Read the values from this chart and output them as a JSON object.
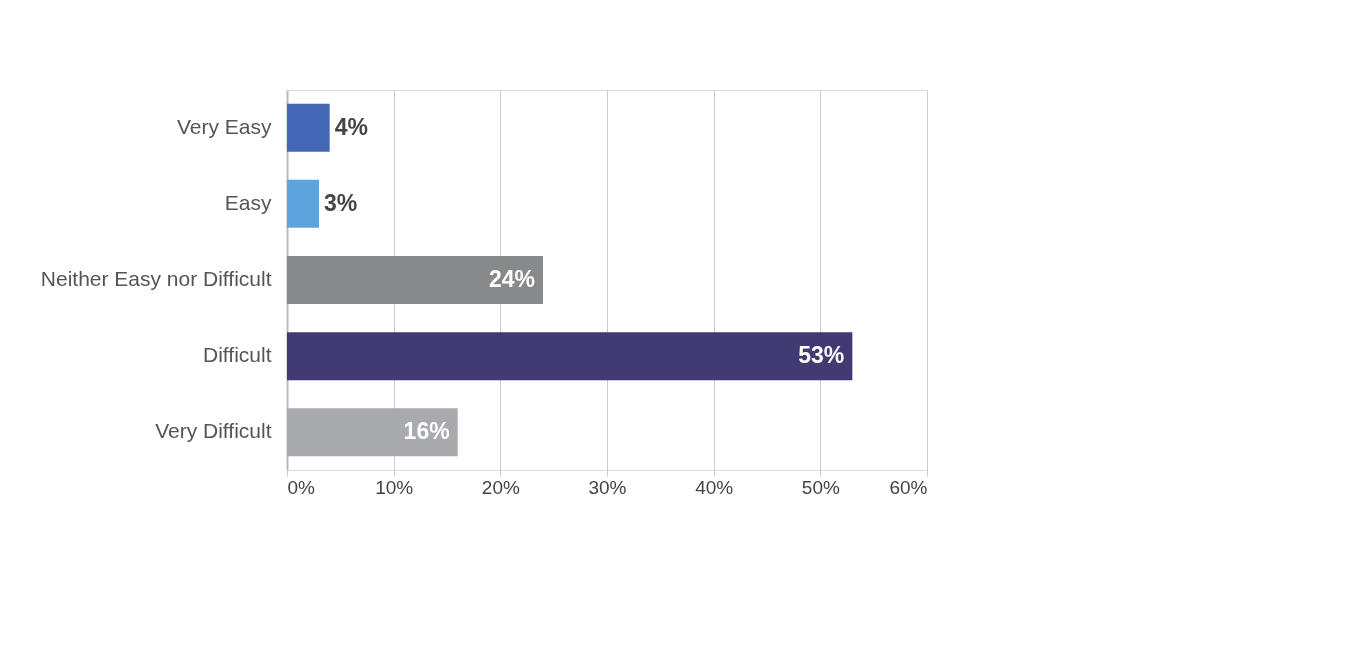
{
  "chart_data": {
    "type": "bar",
    "orientation": "horizontal",
    "categories": [
      "Very Easy",
      "Easy",
      "Neither Easy nor Difficult",
      "Difficult",
      "Very Difficult"
    ],
    "values": [
      4,
      3,
      24,
      53,
      16
    ],
    "colors": [
      "#4467b5",
      "#5da3dd",
      "#88898b",
      "#423a73",
      "#a9aaad"
    ],
    "value_labels": [
      "4%",
      "3%",
      "24%",
      "53%",
      "16%"
    ],
    "xlim": [
      0,
      60
    ],
    "xticks": [
      {
        "value": 0,
        "label": "0%"
      },
      {
        "value": 10,
        "label": "10%"
      },
      {
        "value": 20,
        "label": "20%"
      },
      {
        "value": 30,
        "label": "30%"
      },
      {
        "value": 40,
        "label": "40%"
      },
      {
        "value": 50,
        "label": "50%"
      },
      {
        "value": 60,
        "label": "60%"
      }
    ],
    "grid": "x",
    "legend": false
  }
}
